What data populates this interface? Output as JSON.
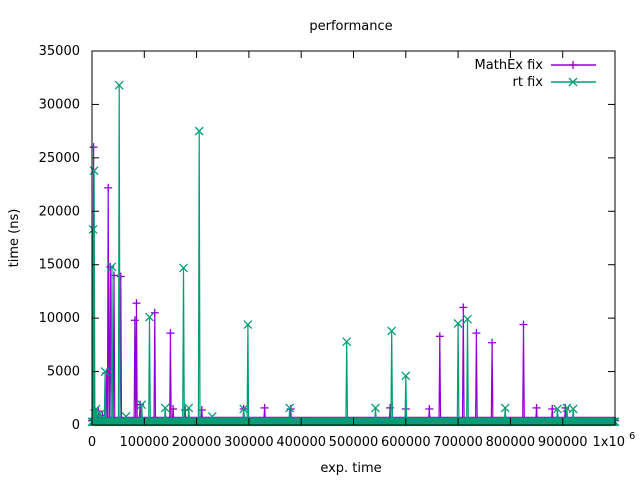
{
  "chart_data": {
    "type": "line",
    "title": "performance",
    "xlabel": "exp. time",
    "ylabel": "time (ns)",
    "xlim": [
      0,
      1000000
    ],
    "ylim": [
      0,
      35000
    ],
    "x_tick_labels": [
      "0",
      "100000",
      "200000",
      "300000",
      "400000",
      "500000",
      "600000",
      "700000",
      "800000",
      "900000",
      "1x10"
    ],
    "x_tick_values": [
      0,
      100000,
      200000,
      300000,
      400000,
      500000,
      600000,
      700000,
      800000,
      900000,
      1000000
    ],
    "x_exponent_label": "6",
    "y_tick_labels": [
      "0",
      "5000",
      "10000",
      "15000",
      "20000",
      "25000",
      "30000",
      "35000"
    ],
    "y_tick_values": [
      0,
      5000,
      10000,
      15000,
      20000,
      25000,
      30000,
      35000
    ],
    "legend_position": "top-right",
    "grid": false,
    "series": [
      {
        "name": "MathEx fix",
        "color": "#9400d3",
        "marker": "plus",
        "baseline": 400,
        "spikes": [
          [
            3000,
            26000
          ],
          [
            5000,
            1400
          ],
          [
            12000,
            1300
          ],
          [
            20000,
            900
          ],
          [
            28000,
            4900
          ],
          [
            31000,
            22200
          ],
          [
            35000,
            14800
          ],
          [
            42000,
            14000
          ],
          [
            55000,
            13900
          ],
          [
            82000,
            9800
          ],
          [
            85000,
            11400
          ],
          [
            92000,
            1900
          ],
          [
            120000,
            10500
          ],
          [
            150000,
            8600
          ],
          [
            155000,
            1500
          ],
          [
            178000,
            1400
          ],
          [
            210000,
            1400
          ],
          [
            290000,
            1500
          ],
          [
            330000,
            1600
          ],
          [
            380000,
            1500
          ],
          [
            570000,
            1600
          ],
          [
            600000,
            1500
          ],
          [
            645000,
            1500
          ],
          [
            665000,
            8300
          ],
          [
            710000,
            11000
          ],
          [
            735000,
            8600
          ],
          [
            765000,
            7700
          ],
          [
            825000,
            9400
          ],
          [
            850000,
            1600
          ],
          [
            880000,
            1500
          ],
          [
            905000,
            1600
          ]
        ]
      },
      {
        "name": "rt fix",
        "color": "#009e73",
        "marker": "x",
        "baseline": 300,
        "spikes": [
          [
            2000,
            18300
          ],
          [
            4000,
            23800
          ],
          [
            8000,
            1500
          ],
          [
            15000,
            1000
          ],
          [
            25000,
            5000
          ],
          [
            38000,
            14800
          ],
          [
            52000,
            31800
          ],
          [
            65000,
            800
          ],
          [
            95000,
            1900
          ],
          [
            110000,
            10100
          ],
          [
            140000,
            1600
          ],
          [
            175000,
            14700
          ],
          [
            185000,
            1600
          ],
          [
            205000,
            27500
          ],
          [
            230000,
            800
          ],
          [
            290000,
            1500
          ],
          [
            298000,
            9400
          ],
          [
            378000,
            1600
          ],
          [
            487000,
            7800
          ],
          [
            542000,
            1600
          ],
          [
            573000,
            8800
          ],
          [
            600000,
            4600
          ],
          [
            700000,
            9500
          ],
          [
            718000,
            9900
          ],
          [
            790000,
            1600
          ],
          [
            890000,
            1500
          ],
          [
            908000,
            1600
          ],
          [
            920000,
            1500
          ]
        ]
      }
    ]
  }
}
